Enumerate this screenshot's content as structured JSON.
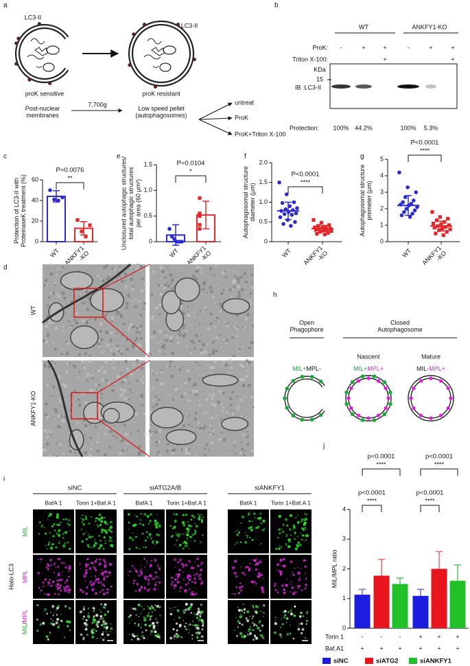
{
  "panel_a": {
    "label": "a",
    "lc3_left": "LC3-II",
    "lc3_right": "LC3-II",
    "sensitive": "proK sensitive",
    "resistant": "proK resistant",
    "input": "Post-nuclear\nmembranes",
    "spin": "7,700g",
    "pellet": "Low speed pellet\n(autophagosomes)",
    "treatments": [
      "untreat",
      "ProK",
      "ProK+Triton X-100"
    ]
  },
  "panel_b": {
    "label": "b",
    "groups": [
      "WT",
      "ANKFY1-KO"
    ],
    "rows": [
      {
        "name": "ProK:",
        "signs": [
          "-",
          "+",
          "+",
          "-",
          "+",
          "+"
        ]
      },
      {
        "name": "Triton X-100:",
        "signs": [
          "+",
          "+"
        ]
      }
    ],
    "kda": "KDa",
    "marker": "15",
    "blot": "IB :LC3-II",
    "protection_label": "Protection:",
    "protection": [
      "100%",
      "44.2%",
      "100%",
      "5.3%"
    ]
  },
  "panel_d": {
    "label": "d",
    "rows": [
      "WT",
      "ANKFY1-KO"
    ]
  },
  "panel_h": {
    "label": "h",
    "groups": [
      "Open\nPhagophore",
      "Closed\nAutophagosome"
    ],
    "stages": [
      "Nascent",
      "Mature"
    ],
    "states": [
      [
        "MIL+",
        "MPL-"
      ],
      [
        "MIL+",
        "MPL+"
      ],
      [
        "MIL-",
        "MPL+"
      ]
    ]
  },
  "panel_i": {
    "label": "i",
    "groups": [
      "siNC",
      "siATG2A/B",
      "siANKFY1"
    ],
    "conditions": [
      "BafA 1",
      "Torin 1+Baf.A 1"
    ],
    "channels": [
      "MIL",
      "MPL",
      [
        "MIL",
        "/",
        "MPL"
      ]
    ],
    "construct": "Halo-LC3"
  },
  "chart_data": [
    {
      "label": "c",
      "type": "bar",
      "fill": false,
      "y_label": "Protection of LC3-II with\nProteinaseK treatment (%)",
      "categories": [
        "WT",
        "ANKFY1\n-KO"
      ],
      "values": [
        44,
        13
      ],
      "errors": [
        5.5,
        6.5
      ],
      "colors": [
        "#2b2bd0",
        "#e3262a"
      ],
      "points": [
        [
          50,
          43,
          40,
          41
        ],
        [
          21,
          16,
          5,
          10
        ]
      ],
      "ylim": [
        0,
        60
      ],
      "yticks": [
        0,
        20,
        40,
        60
      ],
      "annotations": [
        {
          "p": "P=0.0076",
          "stars": "**"
        }
      ]
    },
    {
      "label": "e",
      "type": "bar",
      "fill": false,
      "y_label": "Unclosured autophagic structures/\ntotal autophagic structures\nper area (60 μm²)",
      "categories": [
        "WT",
        "ANKFY1\n-KO"
      ],
      "values": [
        0.13,
        0.52
      ],
      "errors": [
        0.2,
        0.27
      ],
      "colors": [
        "#2b2bd0",
        "#e3262a"
      ],
      "points": [
        [
          0.25,
          0.1,
          0.05,
          0,
          0,
          0
        ],
        [
          0.85,
          0.55,
          0.5,
          0.55,
          0.33,
          0.25,
          0.5
        ]
      ],
      "ylim": [
        0,
        1.5
      ],
      "yticks": [
        0,
        0.5,
        {
          "value": 1,
          "label": "1.0"
        },
        1.5
      ],
      "annotations": [
        {
          "p": "P=0.0104",
          "stars": "*"
        }
      ]
    },
    {
      "label": "f",
      "type": "dot",
      "y_label": "Autophagosomal structure\ndiameter (μm)",
      "categories": [
        "WT",
        "ANKFY1\n-KO"
      ],
      "values": [
        0.78,
        0.33
      ],
      "errors": [
        0.22,
        0.08
      ],
      "colors": [
        "#2b2bd0",
        "#e3262a"
      ],
      "points": [
        [
          1.5,
          1.2,
          1.0,
          0.98,
          0.9,
          0.85,
          0.82,
          0.8,
          0.78,
          0.75,
          0.72,
          0.7,
          0.68,
          0.62,
          0.55,
          0.5,
          0.45,
          0.4
        ],
        [
          0.55,
          0.48,
          0.42,
          0.4,
          0.38,
          0.36,
          0.35,
          0.33,
          0.32,
          0.3,
          0.3,
          0.28,
          0.27,
          0.25,
          0.22,
          0.2,
          0.18
        ]
      ],
      "ylim": [
        0,
        2
      ],
      "yticks": [
        0,
        0.5,
        {
          "value": 1,
          "label": "1.0"
        },
        1.5,
        {
          "value": 2,
          "label": "2.0"
        }
      ],
      "annotations": [
        {
          "p": "P<0.0001",
          "stars": "****"
        }
      ]
    },
    {
      "label": "g",
      "type": "dot",
      "y_label": "Autophagosomal structure\npremeter (μm)",
      "categories": [
        "WT",
        "ANKFY1\n-KO"
      ],
      "values": [
        2.2,
        0.95
      ],
      "errors": [
        0.6,
        0.3
      ],
      "colors": [
        "#2b2bd0",
        "#e3262a"
      ],
      "points": [
        [
          4.2,
          3.3,
          3.0,
          2.7,
          2.5,
          2.4,
          2.3,
          2.25,
          2.2,
          2.1,
          2.0,
          1.9,
          1.8,
          1.7,
          1.6,
          1.5
        ],
        [
          1.8,
          1.5,
          1.4,
          1.3,
          1.2,
          1.1,
          1.05,
          1.0,
          0.95,
          0.9,
          0.85,
          0.8,
          0.75,
          0.7,
          0.6,
          0.5,
          0.4
        ]
      ],
      "ylim": [
        0,
        5
      ],
      "yticks": [
        0,
        1,
        2,
        3,
        4,
        5
      ],
      "annotations": [
        {
          "p": "P<0.0001",
          "stars": "****"
        }
      ]
    },
    {
      "label": "j",
      "type": "bar",
      "fill": true,
      "y_label": "MIL/MPL ratio",
      "values": [
        1.13,
        1.77,
        1.49,
        1.09,
        2.0,
        1.6
      ],
      "errors": [
        0.18,
        0.55,
        0.2,
        0.22,
        0.58,
        0.53
      ],
      "colors": [
        "#1d1de0",
        "#e8161c",
        "#22c12a",
        "#1d1de0",
        "#e8161c",
        "#22c12a"
      ],
      "ylim": [
        0,
        4
      ],
      "yticks": [
        0,
        1,
        2,
        3,
        4
      ],
      "rows": [
        {
          "name": "Torin 1",
          "signs": [
            "-",
            "-",
            "-",
            "+",
            "+",
            "+"
          ]
        },
        {
          "name": "Baf.A1",
          "signs": [
            "+",
            "+",
            "+",
            "+",
            "+",
            "+"
          ]
        }
      ],
      "legend": [
        {
          "name": "siNC",
          "color": "#1d1de0"
        },
        {
          "name": "siATG2",
          "color": "#e8161c"
        },
        {
          "name": "siANKFY1",
          "color": "#22c12a"
        }
      ],
      "annotations": [
        {
          "p": "p<0.0001",
          "stars": "****"
        },
        {
          "p": "p<0.0001",
          "stars": "****"
        },
        {
          "p": "p<0.0001",
          "stars": "****"
        },
        {
          "p": "p<0.0001",
          "stars": "****"
        }
      ]
    }
  ]
}
